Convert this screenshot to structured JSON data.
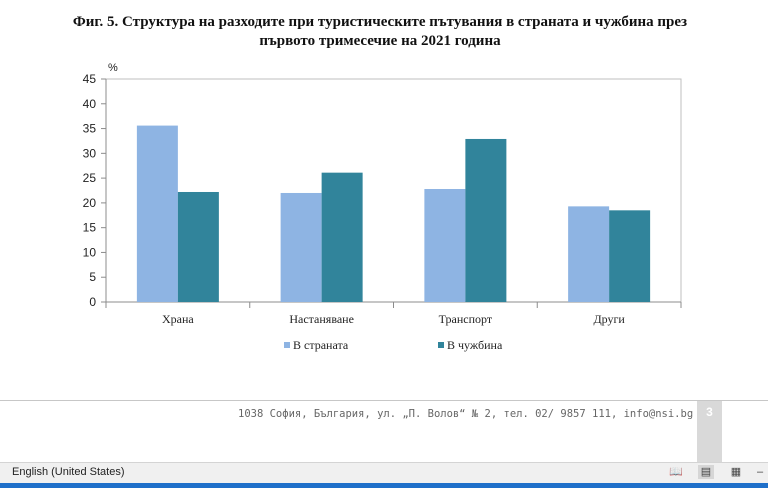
{
  "chart_data": {
    "type": "bar",
    "title": "Фиг. 5. Структура на разходите при туристическите пътувания в страната и чужбина през първото тримесечие на 2021 година",
    "ylabel": "%",
    "xlabel": "",
    "ylim": [
      0,
      45
    ],
    "yticks": [
      0,
      5,
      10,
      15,
      20,
      25,
      30,
      35,
      40,
      45
    ],
    "categories": [
      "Храна",
      "Настаняване",
      "Транспорт",
      "Други"
    ],
    "series": [
      {
        "name": "В страната",
        "color": "#8eb4e3",
        "values": [
          35.6,
          22.0,
          22.8,
          19.3
        ]
      },
      {
        "name": "В чужбина",
        "color": "#31849b",
        "values": [
          22.2,
          26.1,
          32.9,
          18.5
        ]
      }
    ],
    "grid": false,
    "legend": "bottom"
  },
  "footer": {
    "address": "1038 София, България, ул. „П. Волов“ № 2, тел. 02/ 9857 111, info@nsi.bg",
    "page_number": "3"
  },
  "status_bar": {
    "language": "English (United States)",
    "icons": [
      "read-mode-icon",
      "print-layout-icon",
      "web-layout-icon",
      "zoom-out-icon"
    ]
  }
}
